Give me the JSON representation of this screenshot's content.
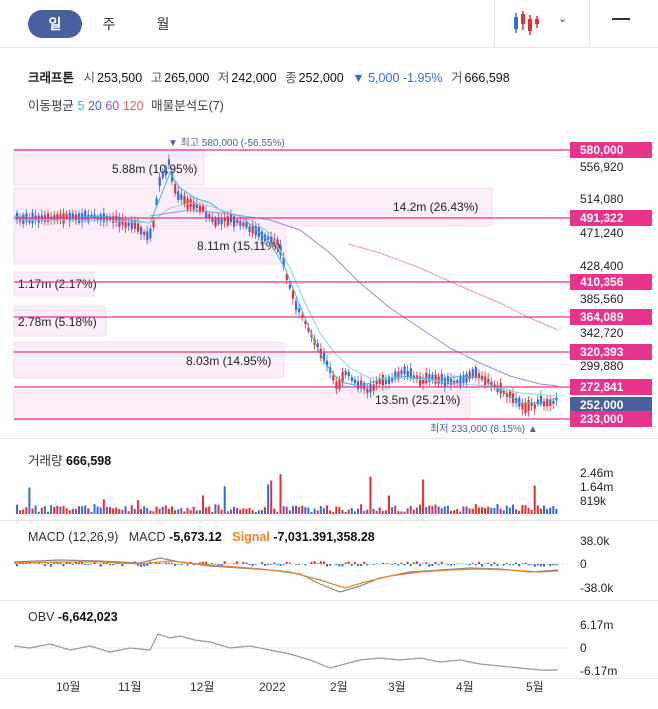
{
  "tabs": [
    {
      "label": "일",
      "active": true
    },
    {
      "label": "주",
      "active": false
    },
    {
      "label": "월",
      "active": false
    }
  ],
  "toolbar": {
    "chart_type_icon": "candlestick-icon",
    "dropdown_icon": "chevron-down-icon",
    "menu_icon": "menu-icon"
  },
  "stock": {
    "name": "크래프톤",
    "open_label": "시",
    "open": "253,500",
    "high_label": "고",
    "high": "265,000",
    "low_label": "저",
    "low": "242,000",
    "close_label": "종",
    "close": "252,000",
    "change_arrow": "▼",
    "change": "5,000",
    "change_pct": "-1.95%",
    "volume_label": "거",
    "volume": "666,598"
  },
  "indicators": {
    "ma_label": "이동평균",
    "ma5": "5",
    "ma20": "20",
    "ma60": "60",
    "ma120": "120",
    "vp_label": "매물분석도(7)"
  },
  "price_axis": {
    "labels": [
      "556,920",
      "514,080",
      "471,240",
      "428,400",
      "385,560",
      "342,720",
      "299,880"
    ],
    "badges": [
      "580,000",
      "491,322",
      "410,356",
      "364,089",
      "320,393",
      "272,841",
      "252,000",
      "233,000"
    ]
  },
  "max_marker": {
    "prefix": "▼ 최고",
    "text": "580,000 (-56.55%)"
  },
  "min_marker": {
    "prefix": "최저",
    "text": "233,000 (8.15%) ▲"
  },
  "volume_profile": [
    {
      "label": "5.88m (10.95%)"
    },
    {
      "label": "14.2m (26.43%)"
    },
    {
      "label": "8.11m (15.11%)"
    },
    {
      "label": "1.17m (2.17%)"
    },
    {
      "label": "2.78m (5.18%)"
    },
    {
      "label": "8.03m (14.95%)"
    },
    {
      "label": "13.5m (25.21%)"
    }
  ],
  "volume_panel": {
    "title": "거래량",
    "value": "666,598",
    "axis": [
      "2.46m",
      "1.64m",
      "819k"
    ]
  },
  "macd_panel": {
    "title": "MACD (12,26,9)",
    "macd_label": "MACD",
    "macd_value": "-5,673.12",
    "signal_label": "Signal",
    "signal_value": "-7,031.391,358.28",
    "axis": [
      "38.0k",
      "0",
      "-38.0k"
    ]
  },
  "obv_panel": {
    "title": "OBV",
    "value": "-6,642,023",
    "axis": [
      "6.17m",
      "0",
      "-6.17m"
    ]
  },
  "x_axis": [
    "10월",
    "11월",
    "12월",
    "2022",
    "2월",
    "3월",
    "4월",
    "5월"
  ],
  "colors": {
    "accent": "#4a5f9d",
    "band": "#e8338c",
    "up": "#e0303a",
    "down": "#3a6ad8",
    "current": "#4a5f9d"
  }
}
